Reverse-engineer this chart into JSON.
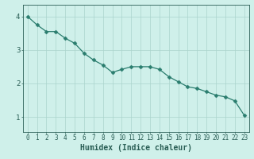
{
  "x": [
    0,
    1,
    2,
    3,
    4,
    5,
    6,
    7,
    8,
    9,
    10,
    11,
    12,
    13,
    14,
    15,
    16,
    17,
    18,
    19,
    20,
    21,
    22,
    23
  ],
  "y": [
    4.0,
    3.75,
    3.55,
    3.55,
    3.35,
    3.2,
    2.9,
    2.7,
    2.55,
    2.33,
    2.42,
    2.5,
    2.5,
    2.5,
    2.42,
    2.2,
    2.05,
    1.9,
    1.85,
    1.75,
    1.65,
    1.6,
    1.48,
    1.05
  ],
  "line_color": "#2a7d6e",
  "marker": "D",
  "marker_size": 2.5,
  "bg_color": "#cff0ea",
  "grid_color": "#aad4cc",
  "xlabel": "Humidex (Indice chaleur)",
  "xlim": [
    -0.5,
    23.5
  ],
  "ylim": [
    0.55,
    4.35
  ],
  "yticks": [
    1,
    2,
    3,
    4
  ],
  "xticks": [
    0,
    1,
    2,
    3,
    4,
    5,
    6,
    7,
    8,
    9,
    10,
    11,
    12,
    13,
    14,
    15,
    16,
    17,
    18,
    19,
    20,
    21,
    22,
    23
  ],
  "tick_color": "#2a5e55",
  "font_color": "#2a5e55",
  "font_size": 5.5,
  "ylabel_fontsize": 6.5,
  "xlabel_fontsize": 7.0
}
